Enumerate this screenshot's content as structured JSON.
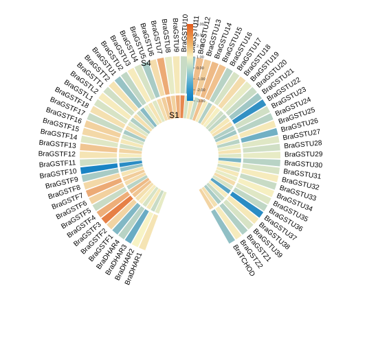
{
  "chart_data": {
    "type": "heatmap",
    "layout": "circular",
    "ring_labels": [
      "S1",
      "S4"
    ],
    "colorbar": {
      "range": [
        -3.0,
        4.0
      ],
      "ticks": [
        "4.00",
        "3.00",
        "2.00",
        "1.00",
        "0.00",
        "-1.00",
        "-2.00",
        "-3.00"
      ],
      "low_color": "#0a7cc4",
      "mid_color": "#f7f3c5",
      "high_color": "#e05a1c"
    },
    "genes": [
      "BraDHAR1",
      "BraDHAR2",
      "BraDHAR3",
      "BraDHAR4",
      "BraGSTF1",
      "BraGSTF2",
      "BraGSTF3",
      "BraGSTF4",
      "BraGSTF5",
      "BraGSTF6",
      "BraGSTF7",
      "BraGSTF8",
      "BraGSTF9",
      "BraGSTF10",
      "BraGSTF11",
      "BraGSTF12",
      "BraGSTF13",
      "BraGSTF14",
      "BraGSTF15",
      "BraGSTF16",
      "BraGSTF17",
      "BraGSTF18",
      "BraGSTL1",
      "BraGSTL2",
      "BraGSTT1",
      "BraGSTT2",
      "BraGSTU1",
      "BraGSTU2",
      "BraGSTU3",
      "BraGSTU4",
      "BraGSTU5",
      "BraGSTU6",
      "BraGSTU7",
      "BraGSTU8",
      "BraGSTU9",
      "BraGSTU10",
      "BraGSTU11",
      "BraGSTU12",
      "BraGSTU13",
      "BraGSTU14",
      "BraGSTU15",
      "BraGSTU16",
      "BraGSTU17",
      "BraGSTU18",
      "BraGSTU19",
      "BraGSTU20",
      "BraGSTU21",
      "BraGSTU22",
      "BraGSTU23",
      "BraGSTU24",
      "BraGSTU25",
      "BraGSTU26",
      "BraGSTU27",
      "BraGSTU28",
      "BraGSTU29",
      "BraGSTU30",
      "BraGSTU31",
      "BraGSTU32",
      "BraGSTU33",
      "BraGSTU34",
      "BraGSTU35",
      "BraGSTU36",
      "BraGSTU37",
      "BraGSTU38",
      "BraGSTU39",
      "BraGSTZ1",
      "BraGSTZ2",
      "BraTCHOD"
    ],
    "values_S1": [
      -0.2,
      -0.6,
      0.3,
      -0.4,
      0.2,
      0.5,
      1.2,
      1.5,
      -0.8,
      0.6,
      1.0,
      0.4,
      -1.2,
      -2.6,
      -0.7,
      0.2,
      0.8,
      -0.5,
      0.3,
      -0.4,
      -1.0,
      0.6,
      -0.3,
      -0.9,
      0.5,
      -0.6,
      -1.4,
      -0.2,
      0.4,
      -0.3,
      0.6,
      1.0,
      1.6,
      0.9,
      1.8,
      2.8,
      -0.4,
      0.3,
      -0.6,
      1.3,
      0.2,
      -0.9,
      0.4,
      0.1,
      -0.5,
      -0.7,
      0.3,
      0.5,
      -0.9,
      -1.1,
      0.2,
      -0.8,
      -0.2,
      0.4,
      -0.3,
      -1.6,
      0.1,
      -0.5,
      0.3,
      -0.2,
      0.6,
      -0.4,
      -2.0,
      0.2,
      -0.6,
      -1.0,
      0.5,
      0.8
    ],
    "values_S4": [
      0.4,
      0.0,
      -1.8,
      -0.8,
      -1.5,
      0.8,
      3.0,
      1.8,
      -0.6,
      0.9,
      1.9,
      0.7,
      -1.0,
      -2.8,
      -0.5,
      0.4,
      1.2,
      -0.3,
      0.7,
      0.9,
      -0.6,
      0.5,
      -0.4,
      0.2,
      -0.5,
      0.4,
      -1.2,
      -0.7,
      0.2,
      -0.4,
      -1.0,
      0.6,
      1.9,
      -0.2,
      0.3,
      -0.6,
      -1.3,
      1.4,
      1.0,
      1.5,
      1.3,
      -0.8,
      -0.4,
      0.6,
      -0.2,
      -0.6,
      -1.1,
      -2.5,
      -0.5,
      -0.8,
      0.3,
      -1.7,
      -0.3,
      -0.5,
      -0.2,
      -0.8,
      -0.4,
      0.2,
      -0.6,
      0.1,
      -0.3,
      -0.7,
      -2.6,
      0.3,
      -0.4,
      -0.9,
      0.2,
      -1.3
    ]
  }
}
